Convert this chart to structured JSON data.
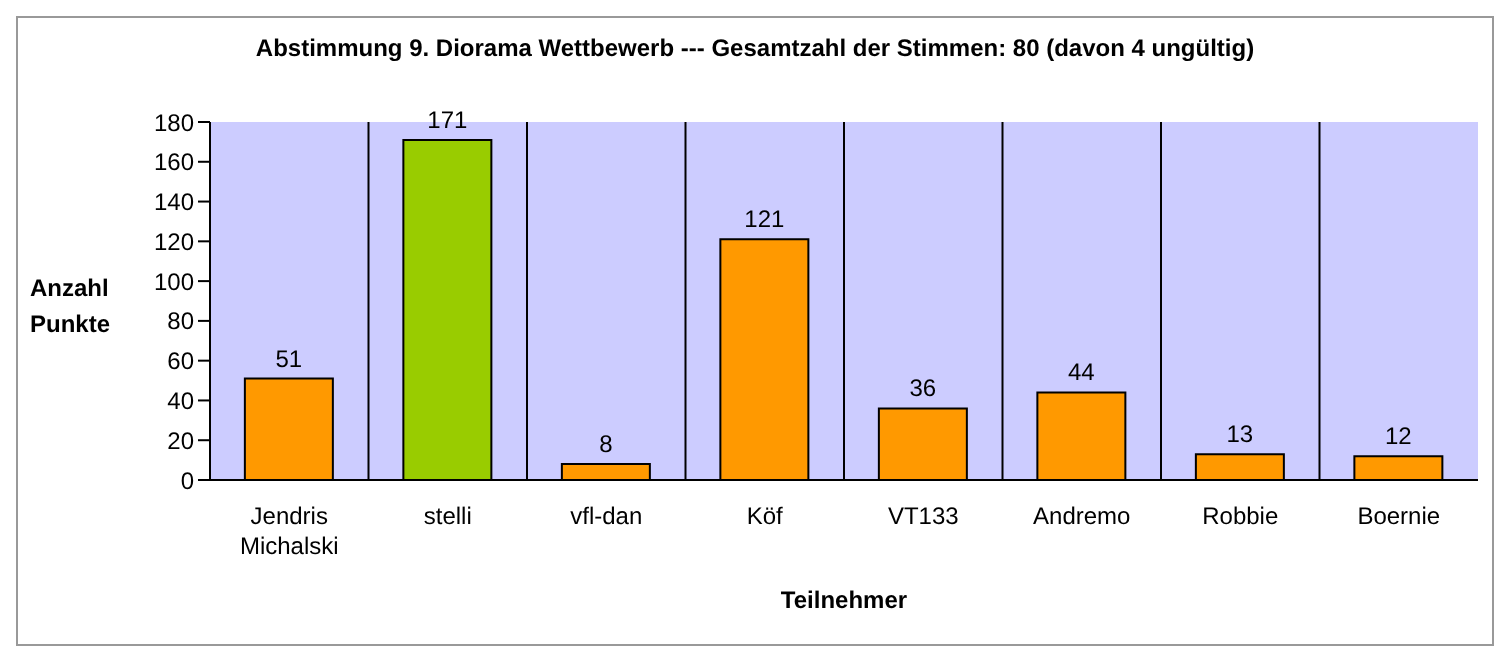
{
  "chart_data": {
    "type": "bar",
    "title": "Abstimmung 9. Diorama Wettbewerb --- Gesamtzahl der Stimmen: 80 (davon 4 ungültig)",
    "xlabel": "Teilnehmer",
    "ylabel": "Anzahl Punkte",
    "categories": [
      "Jendris Michalski",
      "stelli",
      "vfl-dan",
      "Köf",
      "VT133",
      "Andremo",
      "Robbie",
      "Boernie"
    ],
    "values": [
      51,
      171,
      8,
      121,
      36,
      44,
      13,
      12
    ],
    "colors": [
      "#ff9900",
      "#99cc00",
      "#ff9900",
      "#ff9900",
      "#ff9900",
      "#ff9900",
      "#ff9900",
      "#ff9900"
    ],
    "ylim": [
      0,
      180
    ],
    "yticks": [
      0,
      20,
      40,
      60,
      80,
      100,
      120,
      140,
      160,
      180
    ],
    "grid": "x",
    "data_labels": true
  }
}
